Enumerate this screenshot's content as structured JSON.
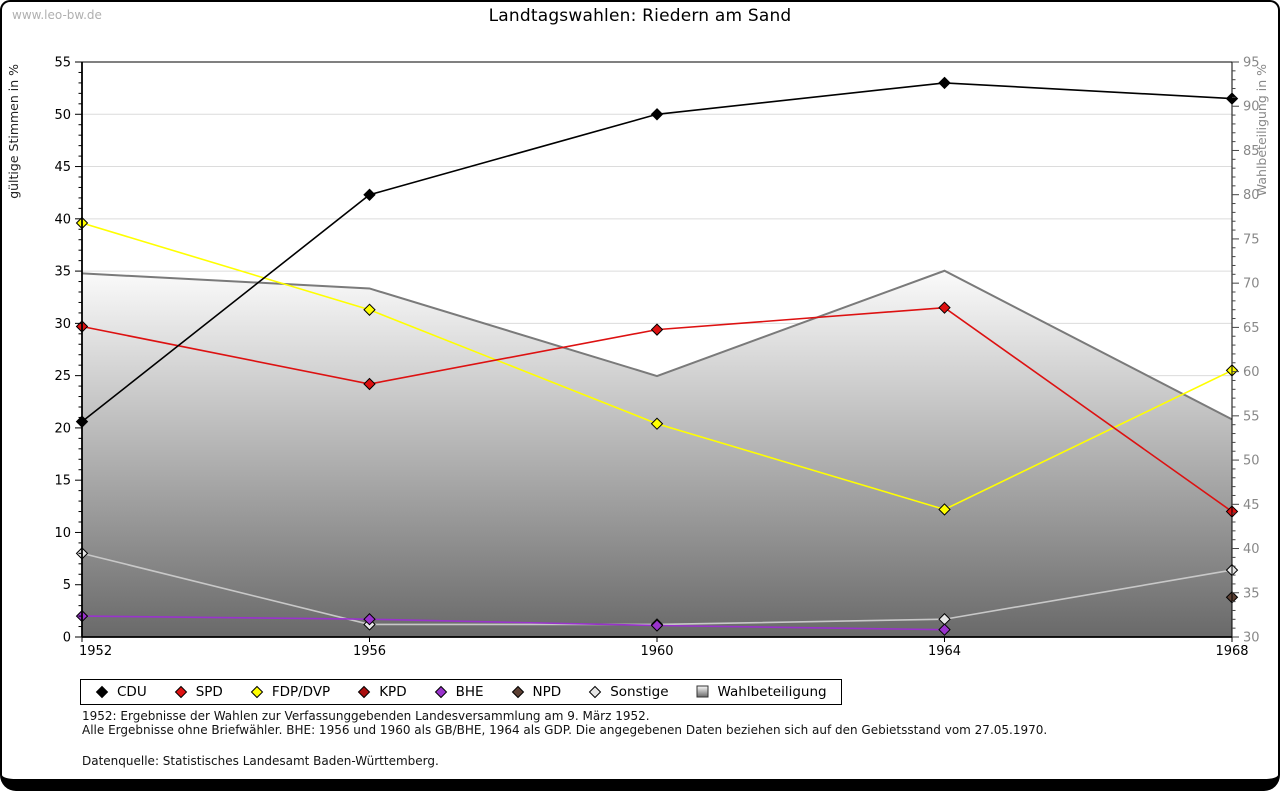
{
  "watermark": "www.leo-bw.de",
  "title": "Landtagswahlen: Riedern am Sand",
  "footnotes": {
    "line1": "1952: Ergebnisse der Wahlen zur Verfassunggebenden Landesversammlung am 9. März 1952.",
    "line2": "Alle Ergebnisse ohne Briefwähler. BHE: 1956 und 1960 als GB/BHE, 1964 als GDP. Die angegebenen Daten beziehen sich auf den Gebietsstand vom 27.05.1970.",
    "source": "Datenquelle: Statistisches Landesamt Baden-Württemberg."
  },
  "colors": {
    "cdu": "#000000",
    "spd": "#dd1111",
    "fdp": "#ffff00",
    "kpd": "#aa0f0f",
    "bhe": "#9933cc",
    "npd": "#5c4033",
    "sonstige_line": "#c8c8c8",
    "sonstige_fill": "#e6e6e6",
    "area_top": "#fbfbfb",
    "area_bottom": "#696969",
    "area_edge": "#7a7a7a",
    "grid": "#dcdcdc",
    "right_axis_text": "#888888"
  },
  "chart_data": {
    "type": "line",
    "title": "Landtagswahlen: Riedern am Sand",
    "x": [
      1952,
      1956,
      1960,
      1964,
      1968
    ],
    "left_axis": {
      "label": "gültige Stimmen in %",
      "min": 0,
      "max": 55,
      "tick_step": 5,
      "ticks": [
        0,
        5,
        10,
        15,
        20,
        25,
        30,
        35,
        40,
        45,
        50,
        55
      ]
    },
    "right_axis": {
      "label": "Wahlbeteiligung in %",
      "min": 30,
      "max": 95,
      "tick_step": 5,
      "ticks": [
        30,
        35,
        40,
        45,
        50,
        55,
        60,
        65,
        70,
        75,
        80,
        85,
        90,
        95
      ]
    },
    "grid": true,
    "legend_position": "bottom",
    "series": [
      {
        "name": "CDU",
        "style": "line",
        "axis": "left",
        "color": "#000000",
        "fill": "#000000",
        "values": [
          20.6,
          42.3,
          50.0,
          53.0,
          51.5
        ]
      },
      {
        "name": "SPD",
        "style": "line",
        "axis": "left",
        "color": "#dd1111",
        "fill": "#dd1111",
        "values": [
          29.7,
          24.2,
          29.4,
          31.5,
          12.0
        ]
      },
      {
        "name": "FDP/DVP",
        "style": "line",
        "axis": "left",
        "color": "#ffff00",
        "fill": "#ffff00",
        "values": [
          39.6,
          31.3,
          20.4,
          12.2,
          25.5
        ]
      },
      {
        "name": "KPD",
        "style": "line",
        "axis": "left",
        "color": "#aa0f0f",
        "fill": "#aa0f0f",
        "values": [
          null,
          null,
          null,
          null,
          null
        ]
      },
      {
        "name": "BHE",
        "style": "line",
        "axis": "left",
        "color": "#9933cc",
        "fill": "#9933cc",
        "values": [
          2.0,
          1.7,
          1.1,
          0.7,
          null
        ]
      },
      {
        "name": "NPD",
        "style": "line",
        "axis": "left",
        "color": "#5c4033",
        "fill": "#5c4033",
        "values": [
          null,
          null,
          null,
          null,
          3.8
        ]
      },
      {
        "name": "Sonstige",
        "style": "line",
        "axis": "left",
        "color": "#c8c8c8",
        "fill": "#e6e6e6",
        "values": [
          8.0,
          1.2,
          1.2,
          1.7,
          6.4
        ]
      },
      {
        "name": "Wahlbeteiligung",
        "style": "area",
        "axis": "right",
        "color": "#7a7a7a",
        "fill": "gradient",
        "values": [
          71.1,
          69.4,
          59.5,
          71.4,
          54.6
        ]
      }
    ]
  }
}
